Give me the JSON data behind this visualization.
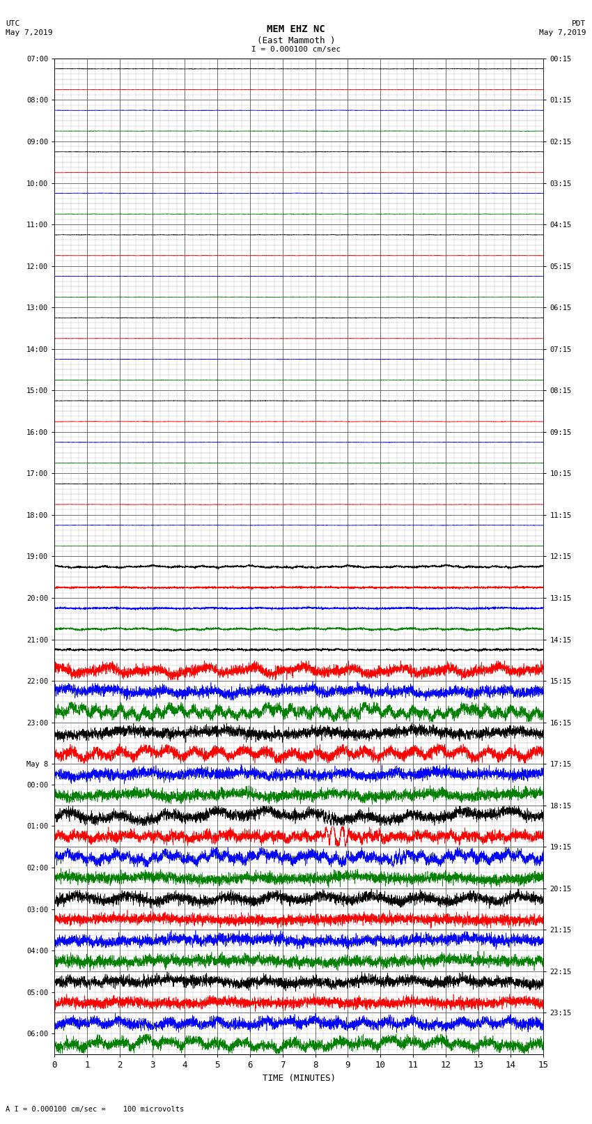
{
  "title_line1": "MEM EHZ NC",
  "title_line2": "(East Mammoth )",
  "scale_label": "I = 0.000100 cm/sec",
  "footer_label": "A I = 0.000100 cm/sec =    100 microvolts",
  "utc_label": "UTC",
  "utc_date": "May 7,2019",
  "pdt_label": "PDT",
  "pdt_date": "May 7,2019",
  "xlabel": "TIME (MINUTES)",
  "xlim": [
    0,
    15
  ],
  "background_color": "#ffffff",
  "grid_major_color": "#555555",
  "grid_minor_color": "#aaaaaa",
  "left_ytick_labels": [
    "07:00",
    "",
    "08:00",
    "",
    "09:00",
    "",
    "10:00",
    "",
    "11:00",
    "",
    "12:00",
    "",
    "13:00",
    "",
    "14:00",
    "",
    "15:00",
    "",
    "16:00",
    "",
    "17:00",
    "",
    "18:00",
    "",
    "19:00",
    "",
    "20:00",
    "",
    "21:00",
    "",
    "22:00",
    "",
    "23:00",
    "",
    "May 8",
    "00:00",
    "",
    "01:00",
    "",
    "02:00",
    "",
    "03:00",
    "",
    "04:00",
    "",
    "05:00",
    "",
    "06:00",
    ""
  ],
  "right_ytick_labels": [
    "00:15",
    "",
    "01:15",
    "",
    "02:15",
    "",
    "03:15",
    "",
    "04:15",
    "",
    "05:15",
    "",
    "06:15",
    "",
    "07:15",
    "",
    "08:15",
    "",
    "09:15",
    "",
    "10:15",
    "",
    "11:15",
    "",
    "12:15",
    "",
    "13:15",
    "",
    "14:15",
    "",
    "15:15",
    "",
    "16:15",
    "",
    "17:15",
    "",
    "18:15",
    "",
    "19:15",
    "",
    "20:15",
    "",
    "21:15",
    "",
    "22:15",
    "",
    "23:15",
    ""
  ],
  "num_rows": 48,
  "trace_colors_pattern": [
    "black",
    "red",
    "blue",
    "green"
  ],
  "quiet_rows": 24,
  "semi_quiet_rows": 5,
  "noise_amplitude_quiet": 0.004,
  "noise_amplitude_semi": 0.025,
  "noise_amplitude_active": 0.12,
  "quake_rows": [
    37,
    38
  ],
  "quake_col": 8.5,
  "quake_amplitude": 0.45,
  "quake_spike_row": 38,
  "quake_spike_col": 8.5,
  "quake_spike_amp": 0.9
}
